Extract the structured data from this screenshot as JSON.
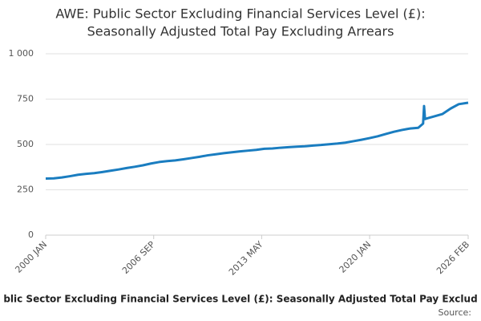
{
  "chart_data": {
    "type": "line",
    "title": [
      "AWE: Public Sector Excluding Financial Services Level (£):",
      "Seasonally Adjusted Total Pay Excluding Arrears"
    ],
    "caption": "blic Sector Excluding Financial Services Level (£): Seasonally Adjusted Total Pay Exclud",
    "source": "Source:",
    "x": [
      2000,
      2000.5,
      2001,
      2001.5,
      2002,
      2002.5,
      2003,
      2003.5,
      2004,
      2004.5,
      2005,
      2005.5,
      2006,
      2006.5,
      2007,
      2007.5,
      2008,
      2008.5,
      2009,
      2009.5,
      2010,
      2010.5,
      2011,
      2011.5,
      2012,
      2012.5,
      2013,
      2013.5,
      2014,
      2014.5,
      2015,
      2015.5,
      2016,
      2016.5,
      2017,
      2017.5,
      2018,
      2018.5,
      2019,
      2019.5,
      2020,
      2020.5,
      2021,
      2021.5,
      2022,
      2022.5,
      2023,
      2023.3,
      2023.36,
      2023.42,
      2023.6,
      2024,
      2024.5,
      2025,
      2025.5,
      2026.083
    ],
    "series": [
      {
        "name": "AWE",
        "color": "#1a7dc0",
        "values": [
          312,
          313,
          318,
          325,
          333,
          338,
          342,
          348,
          355,
          362,
          370,
          377,
          385,
          395,
          403,
          408,
          412,
          418,
          425,
          432,
          440,
          446,
          452,
          457,
          462,
          466,
          470,
          476,
          478,
          482,
          485,
          488,
          490,
          494,
          497,
          501,
          505,
          510,
          518,
          526,
          535,
          545,
          558,
          570,
          580,
          588,
          592,
          615,
          712,
          640,
          645,
          655,
          668,
          698,
          722,
          730
        ]
      }
    ],
    "xlim": [
      2000,
      2026.083
    ],
    "xticks": [
      {
        "value": 2000,
        "label": "2000 JAN"
      },
      {
        "value": 2006.667,
        "label": "2006 SEP"
      },
      {
        "value": 2013.333,
        "label": "2013 MAY"
      },
      {
        "value": 2020,
        "label": "2020 JAN"
      },
      {
        "value": 2026.083,
        "label": "2026 FEB"
      }
    ],
    "ylim": [
      0,
      1000
    ],
    "yticks": [
      0,
      250,
      500,
      750,
      {
        "value": 1000,
        "label": "1 000"
      }
    ],
    "grid": true
  }
}
